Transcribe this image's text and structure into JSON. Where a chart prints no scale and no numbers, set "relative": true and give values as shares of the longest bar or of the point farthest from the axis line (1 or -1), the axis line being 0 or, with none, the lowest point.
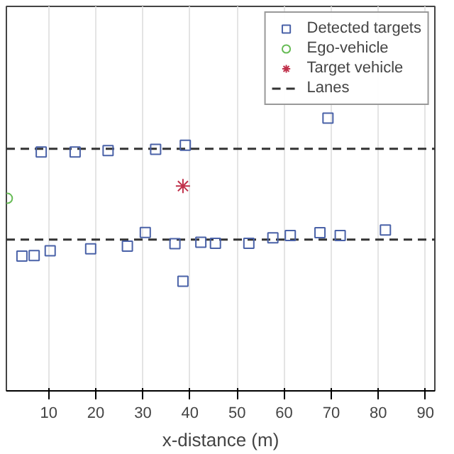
{
  "chart_data": {
    "type": "scatter",
    "xlabel": "x-distance (m)",
    "relative": true,
    "xlim": [
      1,
      92
    ],
    "xticks": [
      10,
      20,
      30,
      40,
      50,
      60,
      70,
      80,
      90
    ],
    "grid": "x",
    "legend": "top right",
    "ref_lines": [
      {
        "axis": "y",
        "value": 0.888,
        "label": "Lanes",
        "color": "#333333",
        "line_style": "dashed"
      },
      {
        "axis": "y",
        "value": 0.555,
        "color": "#333333",
        "line_style": "dashed"
      }
    ],
    "series": [
      {
        "name": "Detected targets",
        "color": "#4a62a8",
        "marker": "square",
        "x": [
          8.4,
          15.6,
          22.6,
          32.7,
          39.0,
          69.3,
          4.3,
          6.9,
          10.3,
          18.9,
          26.7,
          30.5,
          36.8,
          38.5,
          42.3,
          45.4,
          52.5,
          57.6,
          61.3,
          67.6,
          71.9,
          81.5
        ],
        "values": [
          0.876,
          0.876,
          0.881,
          0.886,
          0.901,
          1.0,
          0.494,
          0.496,
          0.514,
          0.521,
          0.531,
          0.581,
          0.54,
          0.402,
          0.545,
          0.541,
          0.541,
          0.561,
          0.57,
          0.58,
          0.57,
          0.59
        ]
      },
      {
        "name": "Ego-vehicle",
        "color": "#66bb55",
        "marker": "circle",
        "x": [
          1.2
        ],
        "values": [
          0.706
        ]
      },
      {
        "name": "Target vehicle",
        "color": "#c0304a",
        "marker": "cross",
        "x": [
          38.5
        ],
        "values": [
          0.751
        ]
      }
    ]
  }
}
